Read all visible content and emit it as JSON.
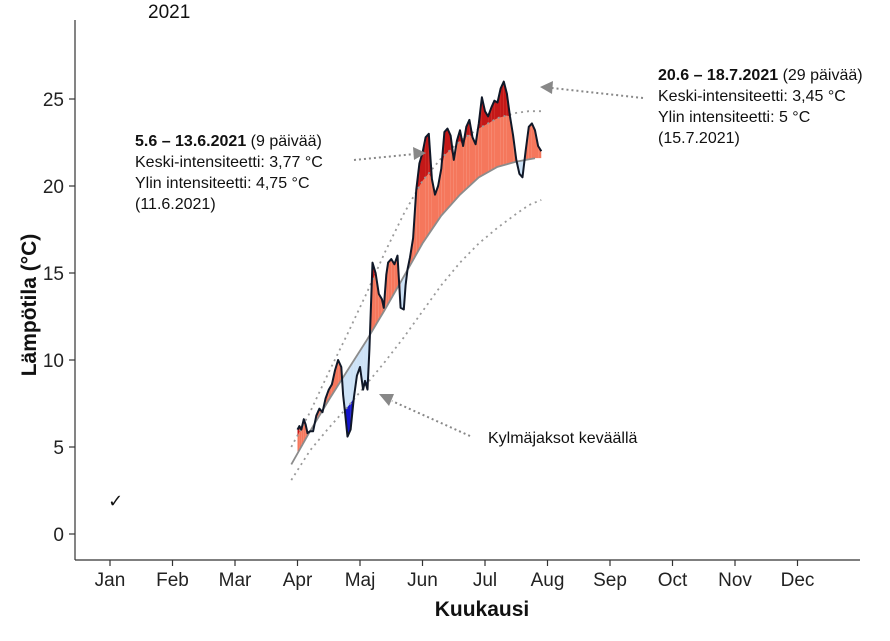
{
  "chart_data": {
    "type": "area",
    "year_label": "2021",
    "xlabel": "Kuukausi",
    "ylabel": "Lämpötila (°C)",
    "x_categories": [
      "Jan",
      "Feb",
      "Mar",
      "Apr",
      "Maj",
      "Jun",
      "Jul",
      "Aug",
      "Sep",
      "Oct",
      "Nov",
      "Dec"
    ],
    "y_ticks": [
      0,
      5,
      10,
      15,
      20,
      25
    ],
    "ylim": [
      -1,
      28
    ],
    "x_unit": "month (1 = Jan 1)",
    "series": [
      {
        "role": "observed",
        "x": [
          4.0,
          4.03,
          4.06,
          4.1,
          4.13,
          4.16,
          4.2,
          4.25,
          4.3,
          4.35,
          4.4,
          4.45,
          4.5,
          4.55,
          4.6,
          4.65,
          4.7,
          4.73,
          4.76,
          4.8,
          4.85,
          4.9,
          4.95,
          5.0,
          5.05,
          5.08,
          5.12,
          5.15,
          5.2,
          5.25,
          5.3,
          5.35,
          5.38,
          5.42,
          5.45,
          5.5,
          5.55,
          5.6,
          5.65,
          5.7,
          5.73,
          5.76,
          5.8,
          5.85,
          5.9,
          5.95,
          6.0,
          6.05,
          6.1,
          6.15,
          6.2,
          6.25,
          6.3,
          6.35,
          6.4,
          6.45,
          6.5,
          6.55,
          6.6,
          6.65,
          6.7,
          6.75,
          6.8,
          6.85,
          6.9,
          6.95,
          7.0,
          7.05,
          7.1,
          7.15,
          7.2,
          7.25,
          7.3,
          7.35,
          7.4,
          7.45,
          7.5,
          7.55,
          7.6,
          7.65,
          7.7,
          7.75,
          7.8,
          7.85,
          7.9
        ],
        "y": [
          6.0,
          6.2,
          6.0,
          6.6,
          6.3,
          5.8,
          5.9,
          5.9,
          6.8,
          7.2,
          7.0,
          7.8,
          8.3,
          8.6,
          9.4,
          10.0,
          9.6,
          8.0,
          7.0,
          5.6,
          6.0,
          7.8,
          9.1,
          9.6,
          8.3,
          8.8,
          8.3,
          10.6,
          15.6,
          15.0,
          13.8,
          13.5,
          13.0,
          14.9,
          15.6,
          15.8,
          15.5,
          16.0,
          13.0,
          12.9,
          14.3,
          15.2,
          15.9,
          17.0,
          19.8,
          21.3,
          21.9,
          22.8,
          23.0,
          20.4,
          19.5,
          20.0,
          21.0,
          23.1,
          23.3,
          22.9,
          21.5,
          22.6,
          23.2,
          22.3,
          23.4,
          23.8,
          22.8,
          22.4,
          23.6,
          25.1,
          24.3,
          24.0,
          24.5,
          24.9,
          24.8,
          25.6,
          26.0,
          25.3,
          24.0,
          22.9,
          21.5,
          20.7,
          20.5,
          22.0,
          23.4,
          23.6,
          23.2,
          22.3,
          22.0
        ]
      },
      {
        "role": "climatology-mean",
        "x": [
          3.9,
          4.2,
          4.5,
          4.8,
          5.1,
          5.4,
          5.7,
          6.0,
          6.3,
          6.6,
          6.9,
          7.2,
          7.5,
          7.8
        ],
        "y": [
          4.0,
          5.9,
          7.7,
          9.4,
          11.1,
          12.9,
          14.8,
          16.7,
          18.3,
          19.5,
          20.5,
          21.1,
          21.4,
          21.6
        ]
      },
      {
        "role": "climatology-upper",
        "x": [
          3.9,
          4.2,
          4.5,
          4.8,
          5.1,
          5.4,
          5.7,
          6.0,
          6.3,
          6.6,
          6.9,
          7.2,
          7.5,
          7.7,
          7.9
        ],
        "y": [
          5.0,
          7.0,
          9.3,
          11.5,
          13.8,
          16.2,
          18.4,
          20.3,
          21.6,
          22.6,
          23.3,
          23.9,
          24.2,
          24.3,
          24.3
        ]
      },
      {
        "role": "climatology-lower",
        "x": [
          3.9,
          4.2,
          4.5,
          4.8,
          5.1,
          5.4,
          5.7,
          6.0,
          6.3,
          6.6,
          6.9,
          7.2,
          7.5,
          7.7,
          7.9
        ],
        "y": [
          3.1,
          4.8,
          6.1,
          7.3,
          8.6,
          9.9,
          11.3,
          12.8,
          14.3,
          15.6,
          16.7,
          17.6,
          18.4,
          18.9,
          19.2
        ]
      }
    ],
    "stray_marks": [
      {
        "label": "✓",
        "x": 1.05,
        "y": 2.0
      }
    ],
    "annotations": [
      {
        "period": "5.6 – 13.6.2021",
        "days": "(9 päivää)",
        "mean": "Keski-intensiteetti: 3,77 °C",
        "max": "Ylin intensiteetti: 4,75 °C",
        "date": "(11.6.2021)"
      },
      {
        "period": "20.6 – 18.7.2021",
        "days": "(29 päivää)",
        "mean": "Keski-intensiteetti: 3,45 °C",
        "max": "Ylin intensiteetti: 5 °C",
        "date": "(15.7.2021)"
      },
      {
        "text": "Kylmäjaksot keväällä"
      }
    ],
    "colors": {
      "warm_fill": "#f5775c",
      "warm_heatwave": "#c41818",
      "cold_fill": "#cce2f7",
      "cold_spell": "#1414cc",
      "observed_line": "#101828",
      "mean_line": "#8c8c8c",
      "threshold_line": "#9a9a9a",
      "arrow": "#888888"
    }
  }
}
